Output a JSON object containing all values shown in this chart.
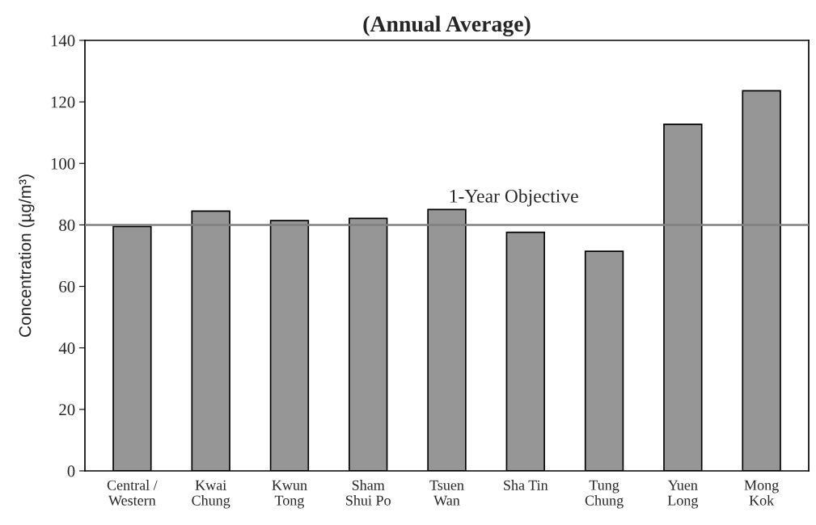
{
  "chart_data": {
    "type": "bar",
    "title": "(Annual Average)",
    "ylabel": "Concentration (µg/m³)",
    "categories": [
      "Central /\nWestern",
      "Kwai\nChung",
      "Kwun\nTong",
      "Sham\nShui Po",
      "Tsuen\nWan",
      "Sha Tin",
      "Tung\nChung",
      "Yuen\nLong",
      "Mong\nKok"
    ],
    "values": [
      79.5,
      84.5,
      81.4,
      82.1,
      85.0,
      77.6,
      71.4,
      112.7,
      123.6
    ],
    "color": "#969696",
    "ylim": [
      0,
      140
    ],
    "yticks": [
      0,
      20,
      40,
      60,
      80,
      100,
      120,
      140
    ],
    "ref_lines": [
      {
        "axis": "y",
        "value": 80,
        "label": "1-Year Objective",
        "color": "#808080"
      }
    ],
    "grid": false
  }
}
